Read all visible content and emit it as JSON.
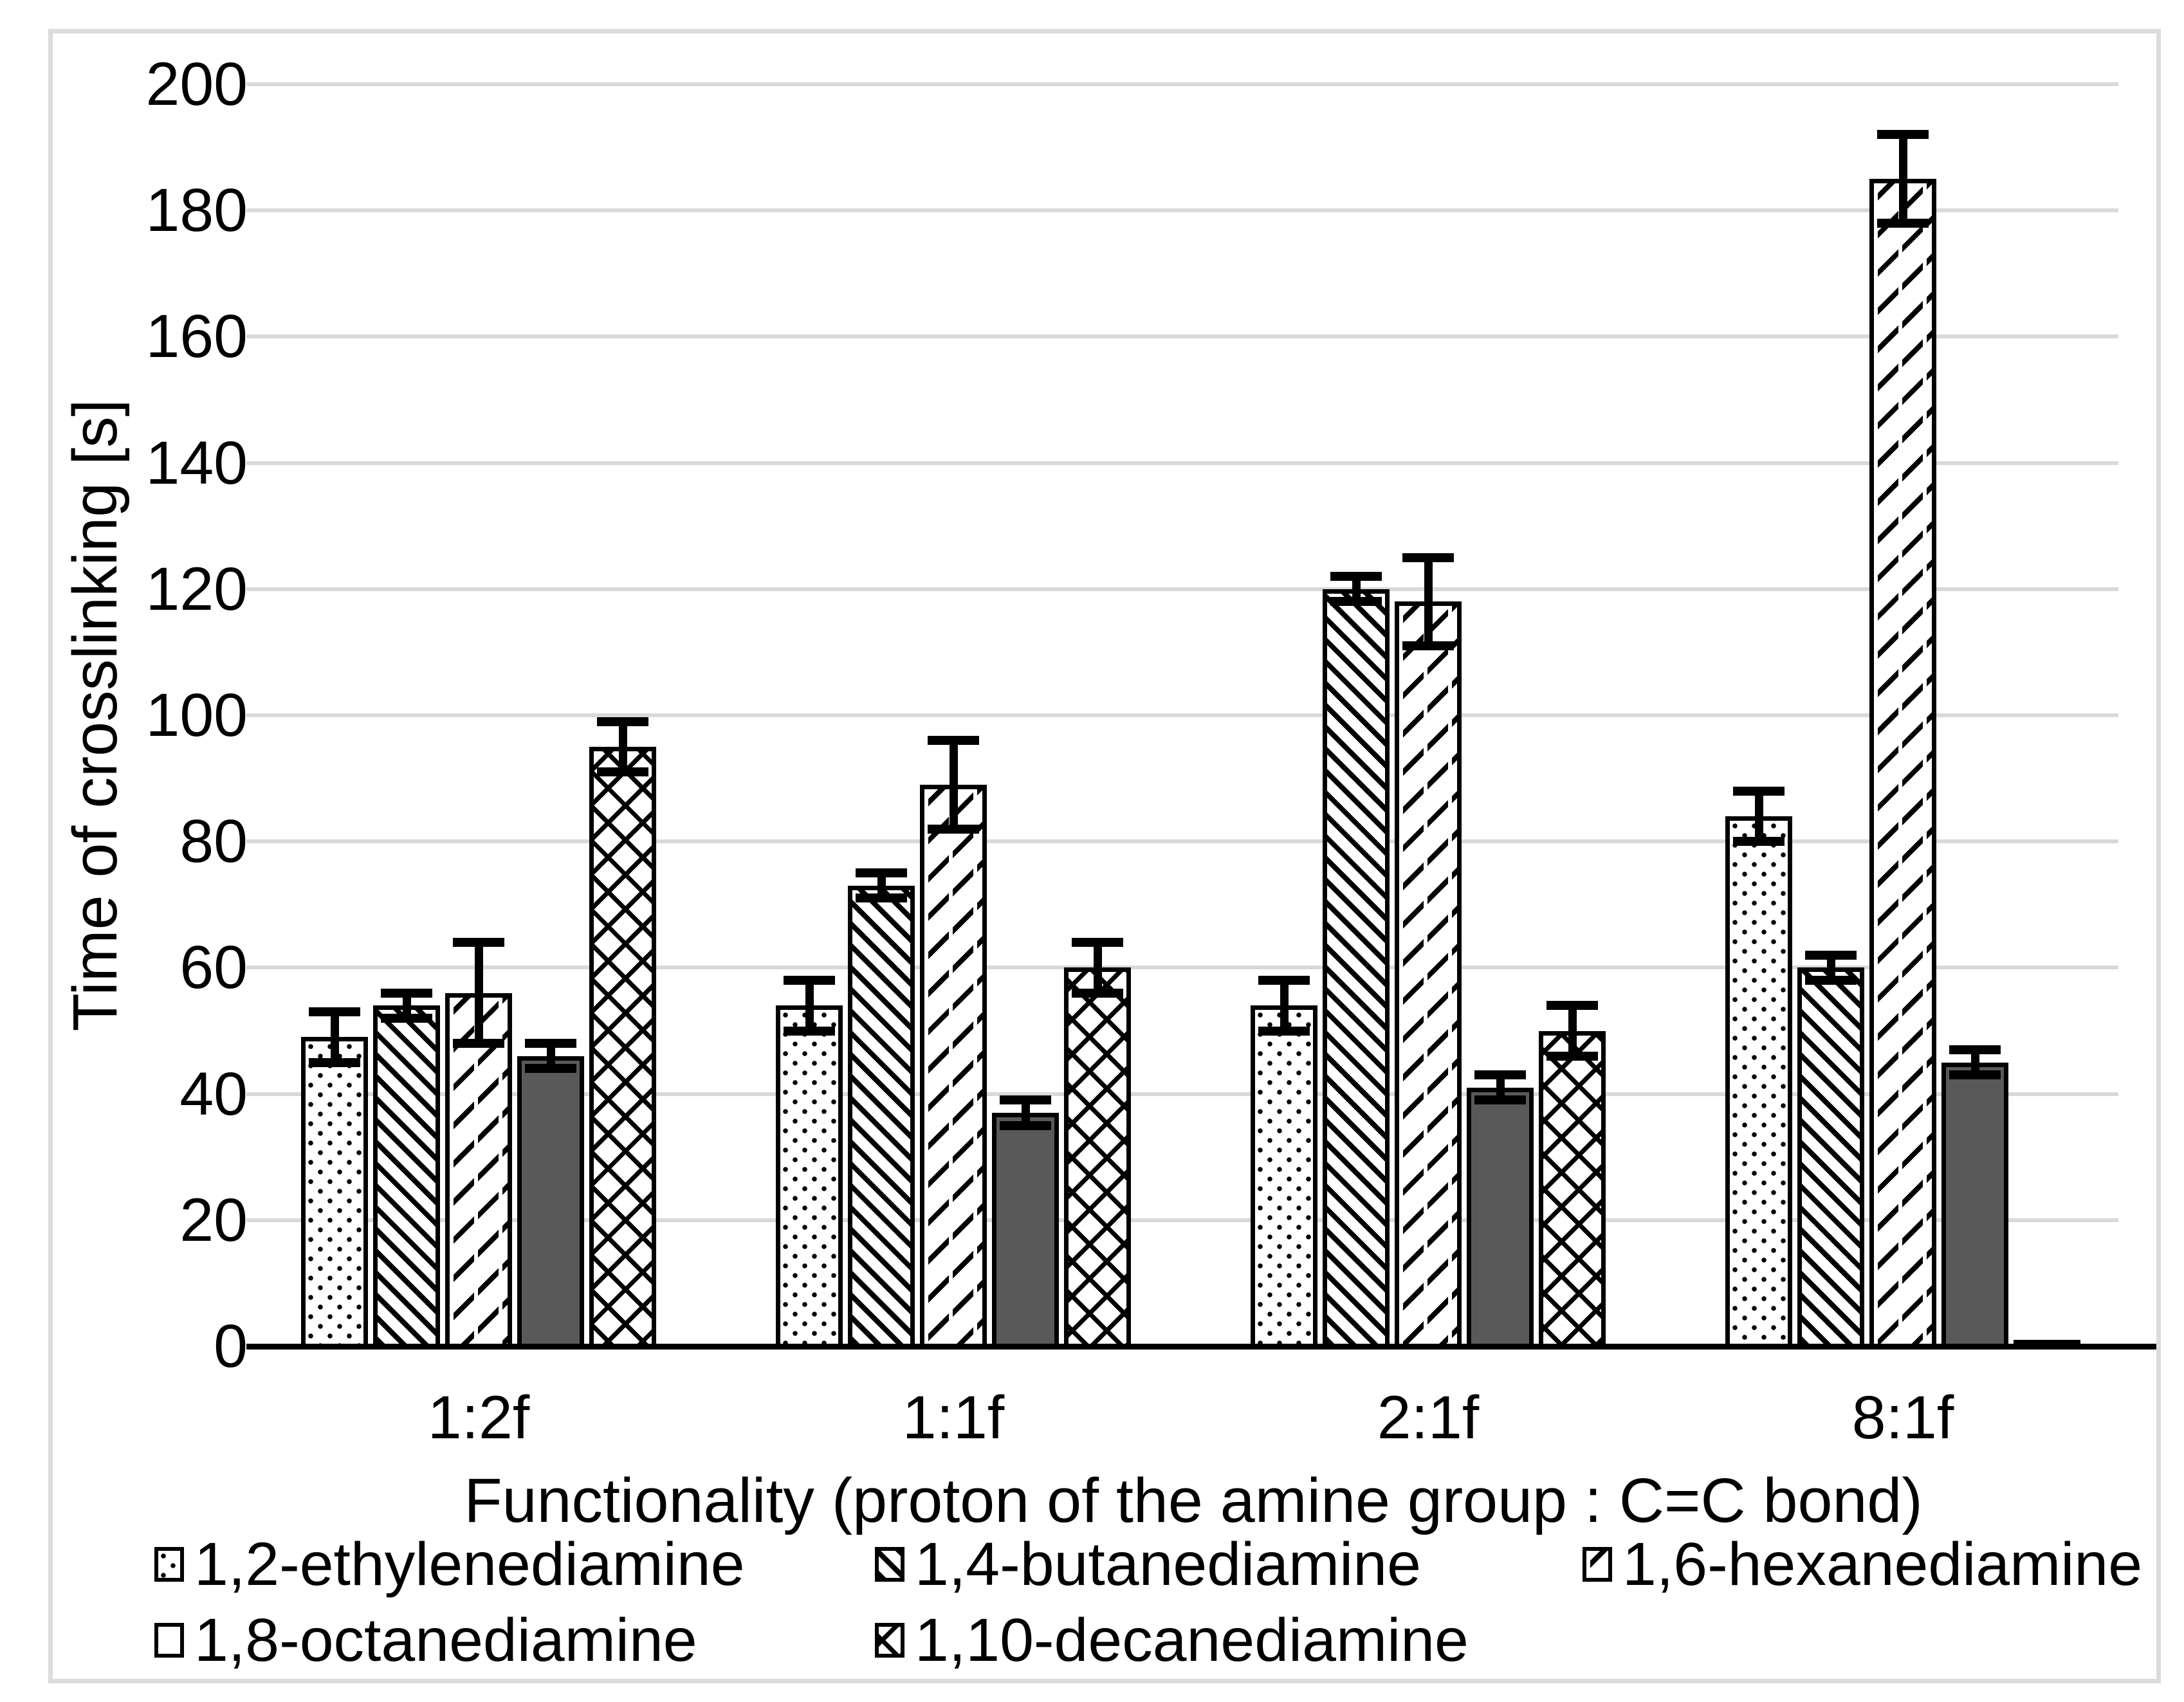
{
  "figure": {
    "y_axis_title": "Time of crosslinking [s]",
    "x_axis_title": "Functionality (proton of the amine group : C=C bond)",
    "y_tick_labels": [
      "0",
      "20",
      "40",
      "60",
      "80",
      "100",
      "120",
      "140",
      "160",
      "180",
      "200"
    ]
  },
  "chart_data": {
    "type": "bar",
    "title": "",
    "xlabel": "Functionality (proton of the amine group : C=C bond)",
    "ylabel": "Time of crosslinking [s]",
    "ylim": [
      0,
      200
    ],
    "y_tick_step": 20,
    "grid": true,
    "legend_position": "bottom",
    "categories": [
      "1:2f",
      "1:1f",
      "2:1f",
      "8:1f"
    ],
    "series": [
      {
        "name": "1,2-ethylenediamine",
        "pattern": "dotted",
        "values": [
          49,
          54,
          54,
          84
        ],
        "errors": [
          4,
          4,
          4,
          4
        ]
      },
      {
        "name": "1,4-butanediamine",
        "pattern": "diagonal-down",
        "values": [
          54,
          73,
          120,
          60
        ],
        "errors": [
          2,
          2,
          2,
          2
        ]
      },
      {
        "name": "1,6-hexanediamine",
        "pattern": "dashed-diagonal-up",
        "values": [
          56,
          89,
          118,
          185
        ],
        "errors": [
          8,
          7,
          7,
          7
        ]
      },
      {
        "name": "1,8-octanediamine",
        "pattern": "solid-dark-gray",
        "values": [
          46,
          37,
          41,
          45
        ],
        "errors": [
          2,
          2,
          2,
          2
        ]
      },
      {
        "name": "1,10-decanediamine",
        "pattern": "diamond-crosshatch",
        "values": [
          95,
          60,
          50,
          1
        ],
        "errors": [
          4,
          4,
          4,
          0
        ]
      }
    ],
    "colors": {
      "bar_outline": "#000000",
      "solid_fill": "#595959",
      "gridline": "#d9d9d9",
      "frame_border": "#dcdcdc",
      "text": "#000000",
      "background": "#ffffff"
    }
  }
}
